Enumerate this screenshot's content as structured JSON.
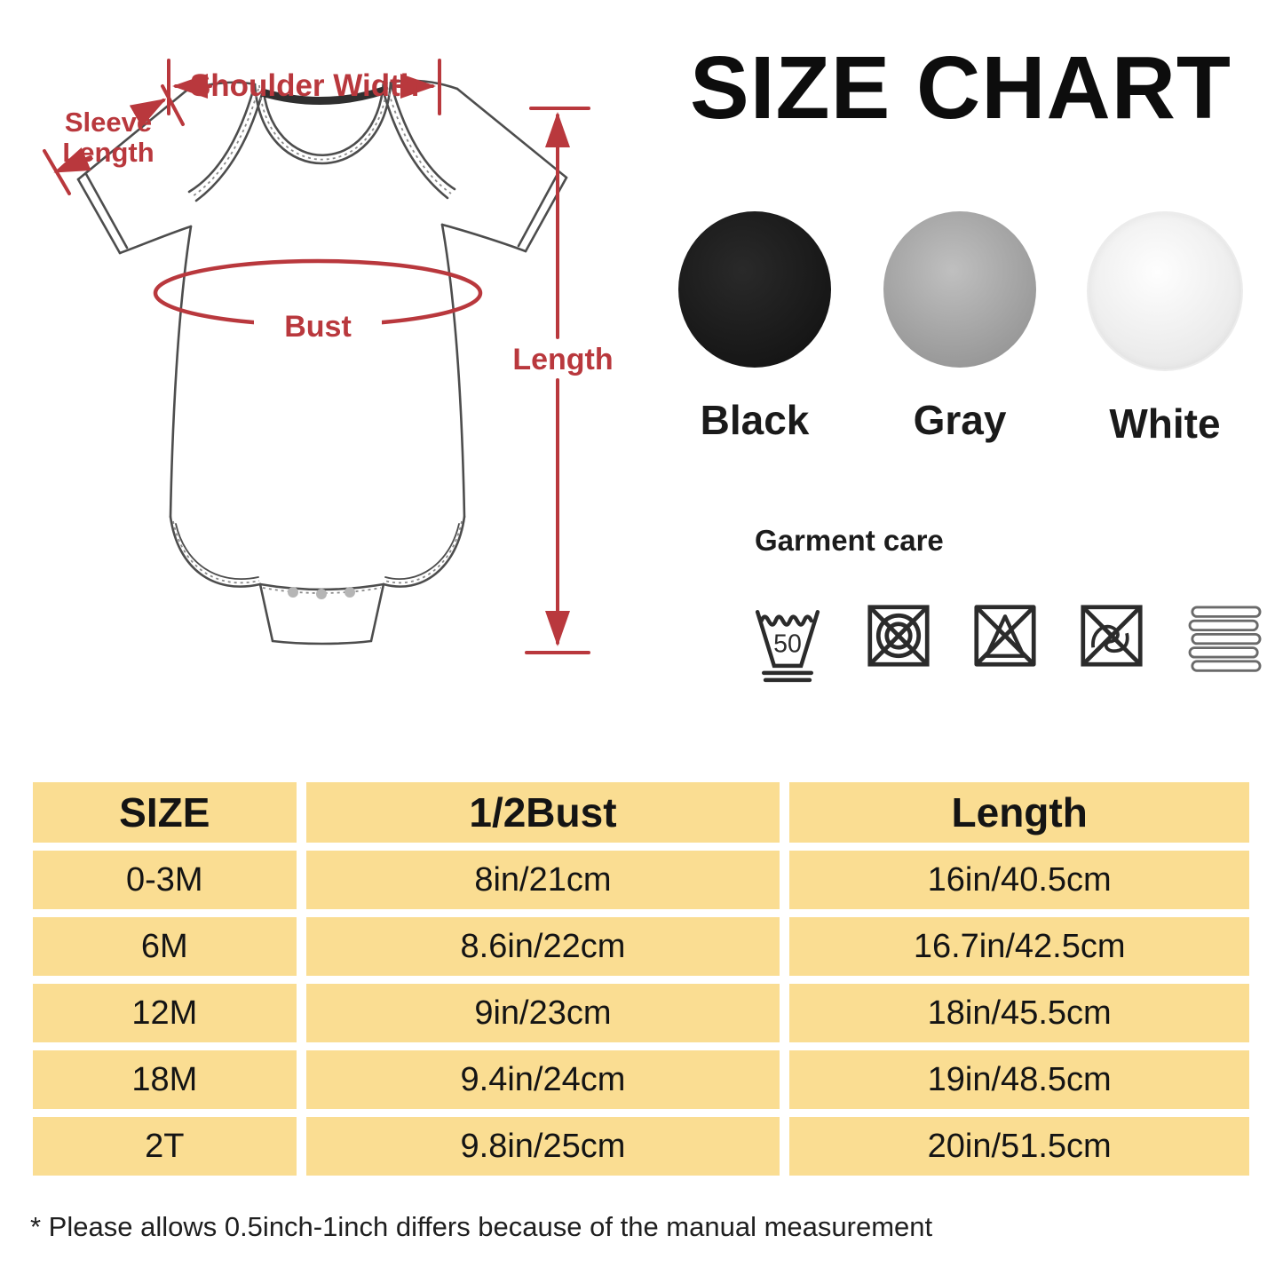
{
  "title": "SIZE CHART",
  "diagram": {
    "description": "baby bodysuit measurement diagram",
    "annotation_color": "#b9383d",
    "labels": {
      "shoulder_width": "Shoulder Width",
      "sleeve_line1": "Sleeve",
      "sleeve_line2": "Length",
      "bust": "Bust",
      "length": "Length"
    }
  },
  "colors": {
    "swatches": [
      {
        "label": "Black",
        "hex": "#1e1e1e"
      },
      {
        "label": "Gray",
        "hex": "#a7a7a7"
      },
      {
        "label": "White",
        "hex": "#f4f4f4"
      }
    ]
  },
  "garment_care": {
    "heading": "Garment care",
    "icons": [
      {
        "name": "wash-50-icon",
        "label": "50"
      },
      {
        "name": "no-tumble-dry-icon"
      },
      {
        "name": "no-bleach-icon"
      },
      {
        "name": "no-wring-icon"
      },
      {
        "name": "dry-flat-icon"
      }
    ]
  },
  "size_table": {
    "headers": [
      "SIZE",
      "1/2Bust",
      "Length"
    ],
    "rows": [
      [
        "0-3M",
        "8in/21cm",
        "16in/40.5cm"
      ],
      [
        "6M",
        "8.6in/22cm",
        "16.7in/42.5cm"
      ],
      [
        "12M",
        "9in/23cm",
        "18in/45.5cm"
      ],
      [
        "18M",
        "9.4in/24cm",
        "19in/48.5cm"
      ],
      [
        "2T",
        "9.8in/25cm",
        "20in/51.5cm"
      ]
    ],
    "cell_color": "#fadd92"
  },
  "footnote": "* Please allows 0.5inch-1inch differs because of the manual measurement"
}
